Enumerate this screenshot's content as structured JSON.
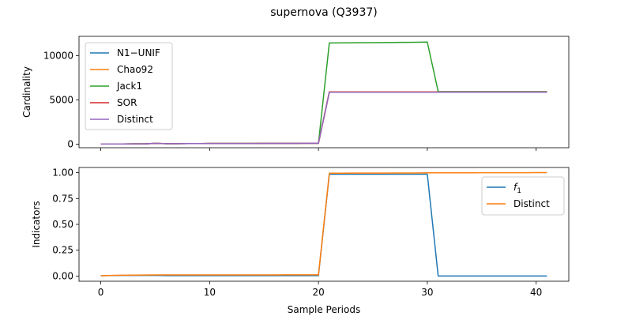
{
  "figure": {
    "title": "supernova (Q3937)",
    "xlabel": "Sample Periods"
  },
  "chart_data": [
    {
      "type": "line",
      "ylabel": "Cardinality",
      "xlim": [
        -2,
        43
      ],
      "ylim": [
        -400,
        12200
      ],
      "xticks": [
        0,
        10,
        20,
        30,
        40
      ],
      "yticks": [
        0,
        5000,
        10000
      ],
      "ytick_labels": [
        "0",
        "5000",
        "10000"
      ],
      "grid": false,
      "legend_position": "top-left",
      "x": [
        0,
        1,
        2,
        3,
        4,
        5,
        6,
        7,
        8,
        9,
        10,
        11,
        12,
        13,
        14,
        15,
        16,
        17,
        18,
        19,
        20,
        21,
        22,
        23,
        24,
        25,
        26,
        27,
        28,
        29,
        30,
        31,
        32,
        33,
        34,
        35,
        36,
        37,
        38,
        39,
        40,
        41
      ],
      "series": [
        {
          "name": "N1−UNIF",
          "color": "#1f77b4",
          "values": [
            20,
            25,
            30,
            35,
            40,
            90,
            60,
            60,
            65,
            70,
            75,
            80,
            80,
            85,
            85,
            90,
            90,
            95,
            95,
            100,
            100,
            5900,
            5900,
            5900,
            5900,
            5900,
            5900,
            5900,
            5900,
            5900,
            5900,
            5900,
            5900,
            5900,
            5900,
            5900,
            5900,
            5900,
            5900,
            5900,
            5900,
            5900
          ]
        },
        {
          "name": "Chao92",
          "color": "#ff7f0e",
          "values": [
            20,
            25,
            30,
            35,
            40,
            90,
            60,
            60,
            65,
            70,
            75,
            80,
            80,
            85,
            85,
            90,
            90,
            95,
            95,
            100,
            100,
            5920,
            5920,
            5920,
            5920,
            5920,
            5920,
            5920,
            5920,
            5920,
            5920,
            5920,
            5920,
            5920,
            5920,
            5920,
            5920,
            5920,
            5920,
            5920,
            5920,
            5920
          ]
        },
        {
          "name": "Jack1",
          "color": "#2ca02c",
          "values": [
            20,
            25,
            30,
            35,
            40,
            90,
            60,
            60,
            65,
            70,
            75,
            80,
            80,
            85,
            85,
            90,
            90,
            95,
            95,
            100,
            100,
            11450,
            11460,
            11470,
            11480,
            11490,
            11500,
            11510,
            11520,
            11530,
            11550,
            5950,
            5950,
            5950,
            5950,
            5950,
            5950,
            5950,
            5950,
            5950,
            5950,
            5950
          ]
        },
        {
          "name": "SOR",
          "color": "#d62728",
          "values": [
            20,
            25,
            30,
            35,
            40,
            90,
            60,
            60,
            65,
            70,
            75,
            80,
            80,
            85,
            85,
            90,
            90,
            95,
            95,
            100,
            100,
            5900,
            5900,
            5900,
            5900,
            5900,
            5900,
            5900,
            5900,
            5900,
            5900,
            5900,
            5900,
            5900,
            5900,
            5900,
            5900,
            5900,
            5900,
            5900,
            5900,
            5900
          ]
        },
        {
          "name": "Distinct",
          "color": "#9467bd",
          "values": [
            20,
            25,
            30,
            35,
            40,
            100,
            60,
            60,
            65,
            70,
            75,
            80,
            80,
            85,
            85,
            90,
            90,
            95,
            95,
            100,
            100,
            5880,
            5880,
            5880,
            5880,
            5880,
            5880,
            5880,
            5880,
            5880,
            5880,
            5880,
            5880,
            5880,
            5880,
            5880,
            5880,
            5880,
            5880,
            5880,
            5880,
            5880
          ]
        }
      ]
    },
    {
      "type": "line",
      "ylabel": "Indicators",
      "xlim": [
        -2,
        43
      ],
      "ylim": [
        -0.05,
        1.05
      ],
      "xticks": [
        0,
        10,
        20,
        30,
        40
      ],
      "xtick_labels": [
        "0",
        "10",
        "20",
        "30",
        "40"
      ],
      "yticks": [
        0,
        0.25,
        0.5,
        0.75,
        1.0
      ],
      "ytick_labels": [
        "0.00",
        "0.25",
        "0.50",
        "0.75",
        "1.00"
      ],
      "grid": false,
      "legend_position": "top-right",
      "x": [
        0,
        1,
        2,
        3,
        4,
        5,
        6,
        7,
        8,
        9,
        10,
        11,
        12,
        13,
        14,
        15,
        16,
        17,
        18,
        19,
        20,
        21,
        22,
        23,
        24,
        25,
        26,
        27,
        28,
        29,
        30,
        31,
        32,
        33,
        34,
        35,
        36,
        37,
        38,
        39,
        40,
        41
      ],
      "series": [
        {
          "name": "f",
          "name_subscript": "1",
          "color": "#1f77b4",
          "values": [
            0.003,
            0.005,
            0.006,
            0.006,
            0.006,
            0.006,
            0.004,
            0.004,
            0.004,
            0.004,
            0.004,
            0.004,
            0.004,
            0.004,
            0.004,
            0.004,
            0.004,
            0.004,
            0.004,
            0.004,
            0.004,
            0.985,
            0.985,
            0.985,
            0.985,
            0.985,
            0.985,
            0.985,
            0.985,
            0.985,
            0.985,
            0.001,
            0.001,
            0.001,
            0.001,
            0.001,
            0.001,
            0.001,
            0.001,
            0.001,
            0.001,
            0.001
          ]
        },
        {
          "name": "Distinct",
          "color": "#ff7f0e",
          "values": [
            0.003,
            0.006,
            0.008,
            0.009,
            0.01,
            0.011,
            0.011,
            0.011,
            0.011,
            0.011,
            0.011,
            0.011,
            0.011,
            0.011,
            0.011,
            0.011,
            0.011,
            0.012,
            0.012,
            0.012,
            0.012,
            0.995,
            0.995,
            0.996,
            0.996,
            0.996,
            0.996,
            0.997,
            0.997,
            0.997,
            0.998,
            0.998,
            0.998,
            0.998,
            0.998,
            0.999,
            0.999,
            0.999,
            0.999,
            0.999,
            1.0,
            1.0
          ]
        }
      ]
    }
  ]
}
